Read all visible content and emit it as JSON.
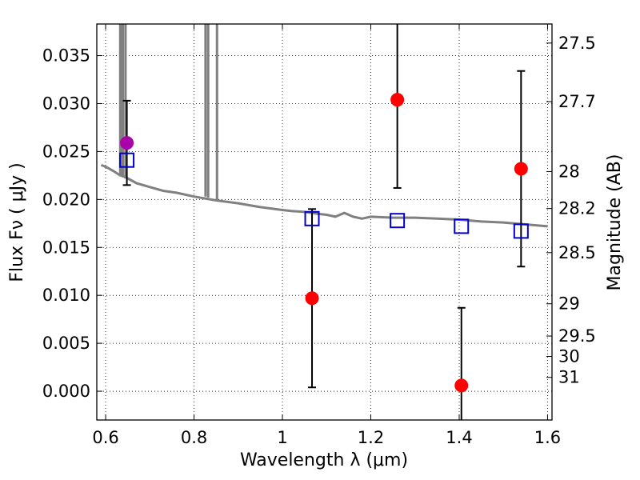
{
  "chart_data": {
    "type": "scatter",
    "title": "",
    "xlabel": "Wavelength  λ (μm)",
    "ylabel": "Flux  Fν  ( μJy )",
    "y2label": "Magnitude (AB)",
    "xlim": [
      0.58,
      1.61
    ],
    "ylim": [
      -0.003,
      0.0383
    ],
    "grid": true,
    "x_ticks": [
      0.6,
      0.8,
      1.0,
      1.2,
      1.4,
      1.6
    ],
    "x_tick_labels": [
      "0.6",
      "0.8",
      "1",
      "1.2",
      "1.4",
      "1.6"
    ],
    "y_ticks": [
      0.0,
      0.005,
      0.01,
      0.015,
      0.02,
      0.025,
      0.03,
      0.035
    ],
    "y_tick_labels": [
      "0.000",
      "0.005",
      "0.010",
      "0.015",
      "0.020",
      "0.025",
      "0.030",
      "0.035"
    ],
    "mag_ticks": [
      27.5,
      27.7,
      28,
      28.2,
      28.5,
      29,
      29.5,
      30,
      31
    ],
    "mag_tick_labels": [
      "27.5",
      "27.7",
      "28",
      "28.2",
      "28.5",
      "29",
      "29.5",
      "30",
      "31"
    ],
    "colors": {
      "model": "#808080",
      "observed": "#ff0000",
      "observed_alt": "#aa00aa",
      "synthetic": "#0000cc",
      "errorbar": "#000000"
    },
    "series": [
      {
        "name": "model_spectrum",
        "style": "line",
        "points": [
          [
            0.59,
            0.0236
          ],
          [
            0.605,
            0.0233
          ],
          [
            0.62,
            0.0229
          ],
          [
            0.63,
            0.0226
          ],
          [
            0.636,
            0.0225
          ],
          [
            0.65,
            0.0222
          ],
          [
            0.67,
            0.0217
          ],
          [
            0.7,
            0.0213
          ],
          [
            0.73,
            0.0209
          ],
          [
            0.76,
            0.0207
          ],
          [
            0.8,
            0.0203
          ],
          [
            0.85,
            0.0199
          ],
          [
            0.9,
            0.0196
          ],
          [
            0.95,
            0.0192
          ],
          [
            1.0,
            0.0189
          ],
          [
            1.02,
            0.0188
          ],
          [
            1.05,
            0.0187
          ],
          [
            1.08,
            0.0185
          ],
          [
            1.1,
            0.0184
          ],
          [
            1.12,
            0.0182
          ],
          [
            1.14,
            0.0186
          ],
          [
            1.16,
            0.0182
          ],
          [
            1.18,
            0.018
          ],
          [
            1.2,
            0.0182
          ],
          [
            1.25,
            0.0181
          ],
          [
            1.3,
            0.0181
          ],
          [
            1.35,
            0.018
          ],
          [
            1.4,
            0.0179
          ],
          [
            1.45,
            0.0177
          ],
          [
            1.5,
            0.0176
          ],
          [
            1.55,
            0.0174
          ],
          [
            1.6,
            0.0172
          ]
        ]
      },
      {
        "name": "observed_flux",
        "style": "marker-circle",
        "points": [
          {
            "x": 1.067,
            "y": 0.0097,
            "err": 0.0093
          },
          {
            "x": 1.26,
            "y": 0.0304,
            "err": 0.0092
          },
          {
            "x": 1.405,
            "y": 0.0006,
            "err": 0.0081
          },
          {
            "x": 1.54,
            "y": 0.0232,
            "err": 0.0102
          }
        ]
      },
      {
        "name": "observed_flux_short",
        "style": "marker-circle",
        "points": [
          {
            "x": 0.648,
            "y": 0.0259,
            "err": 0.0044
          }
        ]
      },
      {
        "name": "synthetic_photometry",
        "style": "marker-square",
        "points": [
          {
            "x": 0.648,
            "y": 0.0241
          },
          {
            "x": 1.067,
            "y": 0.018
          },
          {
            "x": 1.26,
            "y": 0.0178
          },
          {
            "x": 1.405,
            "y": 0.0172
          },
          {
            "x": 1.54,
            "y": 0.0167
          }
        ]
      }
    ]
  }
}
